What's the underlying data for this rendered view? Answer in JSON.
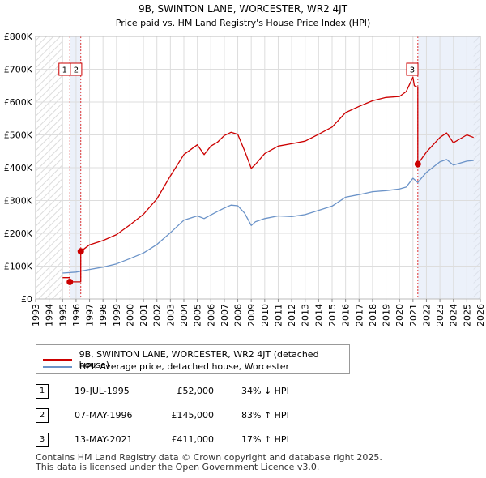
{
  "chart_data": {
    "type": "line",
    "title": "9B, SWINTON LANE, WORCESTER, WR2 4JT",
    "subtitle": "Price paid vs. HM Land Registry's House Price Index (HPI)",
    "xlim": [
      1993,
      2026
    ],
    "ylim": [
      0,
      800000
    ],
    "x_ticks": [
      "1993",
      "1994",
      "1995",
      "1996",
      "1997",
      "1998",
      "1999",
      "2000",
      "2001",
      "2002",
      "2003",
      "2004",
      "2005",
      "2006",
      "2007",
      "2008",
      "2009",
      "2010",
      "2011",
      "2012",
      "2013",
      "2014",
      "2015",
      "2016",
      "2017",
      "2018",
      "2019",
      "2020",
      "2021",
      "2022",
      "2023",
      "2024",
      "2025",
      "2026"
    ],
    "y_ticks": [
      {
        "value": 0,
        "label": "£0"
      },
      {
        "value": 100000,
        "label": "£100K"
      },
      {
        "value": 200000,
        "label": "£200K"
      },
      {
        "value": 300000,
        "label": "£300K"
      },
      {
        "value": 400000,
        "label": "£400K"
      },
      {
        "value": 500000,
        "label": "£500K"
      },
      {
        "value": 600000,
        "label": "£600K"
      },
      {
        "value": 700000,
        "label": "£700K"
      },
      {
        "value": 800000,
        "label": "£800K"
      }
    ],
    "grid": true,
    "hatch_ranges": [
      [
        1993,
        1995.0
      ],
      [
        2025.5,
        2026
      ]
    ],
    "shaded_ranges": [
      [
        1995.54,
        1996.35
      ],
      [
        2021.36,
        2026
      ]
    ],
    "series": [
      {
        "name": "9B, SWINTON LANE, WORCESTER, WR2 4JT (detached house)",
        "color": "#cc0000",
        "x": [
          1995.0,
          1995.54,
          1995.54,
          1996.35,
          1996.35,
          1997.0,
          1998.0,
          1999.0,
          2000.0,
          2001.0,
          2002.0,
          2003.0,
          2004.0,
          2005.0,
          2005.5,
          2006.0,
          2006.5,
          2007.0,
          2007.5,
          2008.0,
          2008.5,
          2009.0,
          2009.3,
          2010.0,
          2011.0,
          2012.0,
          2013.0,
          2014.0,
          2015.0,
          2016.0,
          2017.0,
          2018.0,
          2019.0,
          2020.0,
          2020.5,
          2021.0,
          2021.1,
          2021.36,
          2021.36,
          2022.0,
          2023.0,
          2023.5,
          2024.0,
          2025.0,
          2025.5
        ],
        "y": [
          65000,
          65000,
          52000,
          52000,
          145000,
          165000,
          178000,
          196000,
          226000,
          258000,
          305000,
          375000,
          440000,
          470000,
          440000,
          466000,
          478000,
          498000,
          508000,
          502000,
          452000,
          398000,
          410000,
          443000,
          466000,
          473000,
          481000,
          502000,
          524000,
          568000,
          587000,
          604000,
          614000,
          617000,
          632000,
          676000,
          650000,
          645000,
          411000,
          448000,
          492000,
          506000,
          476000,
          500000,
          492000
        ]
      },
      {
        "name": "HPI: Average price, detached house, Worcester",
        "color": "#6b93c8",
        "x": [
          1995.0,
          1996.0,
          1997.0,
          1998.0,
          1999.0,
          2000.0,
          2001.0,
          2002.0,
          2003.0,
          2004.0,
          2005.0,
          2005.5,
          2006.0,
          2006.5,
          2007.0,
          2007.5,
          2008.0,
          2008.5,
          2009.0,
          2009.3,
          2010.0,
          2011.0,
          2012.0,
          2013.0,
          2014.0,
          2015.0,
          2016.0,
          2017.0,
          2018.0,
          2019.0,
          2020.0,
          2020.5,
          2021.0,
          2021.36,
          2022.0,
          2023.0,
          2023.5,
          2024.0,
          2025.0,
          2025.5
        ],
        "y": [
          79000,
          82000,
          90000,
          97000,
          107000,
          123000,
          140000,
          166000,
          202000,
          240000,
          253000,
          245000,
          256000,
          267000,
          277000,
          286000,
          284000,
          262000,
          224000,
          235000,
          245000,
          253000,
          251000,
          257000,
          270000,
          283000,
          310000,
          318000,
          327000,
          330000,
          335000,
          341000,
          368000,
          355000,
          386000,
          418000,
          425000,
          408000,
          420000,
          422000
        ]
      }
    ],
    "sales": [
      {
        "id": "1",
        "x": 1995.54,
        "y": 52000
      },
      {
        "id": "2",
        "x": 1996.35,
        "y": 145000
      },
      {
        "id": "3",
        "x": 2021.36,
        "y": 411000
      }
    ]
  },
  "legend": {
    "property_label": "9B, SWINTON LANE, WORCESTER, WR2 4JT (detached house)",
    "hpi_label": "HPI: Average price, detached house, Worcester"
  },
  "sales_table": [
    {
      "id": "1",
      "date": "19-JUL-1995",
      "price": "£52,000",
      "hpi": "34% ↓ HPI"
    },
    {
      "id": "2",
      "date": "07-MAY-1996",
      "price": "£145,000",
      "hpi": "83% ↑ HPI"
    },
    {
      "id": "3",
      "date": "13-MAY-2021",
      "price": "£411,000",
      "hpi": "17% ↑ HPI"
    }
  ],
  "footer": {
    "line1": "Contains HM Land Registry data © Crown copyright and database right 2025.",
    "line2": "This data is licensed under the Open Government Licence v3.0."
  }
}
